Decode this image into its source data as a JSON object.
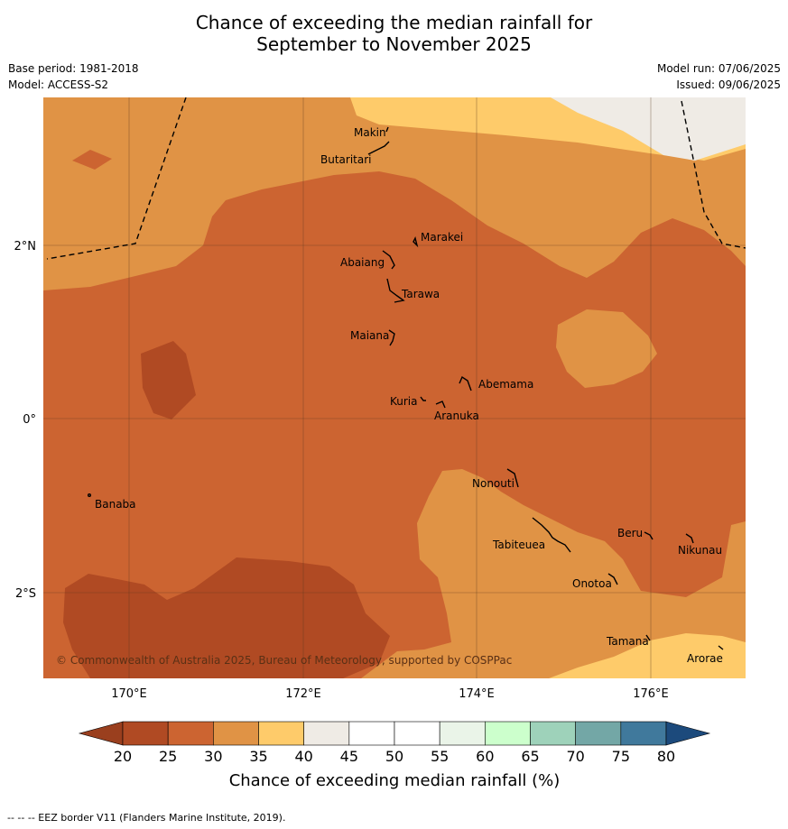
{
  "title": {
    "line1": "Chance of exceeding the median rainfall for",
    "line2": "September to November 2025"
  },
  "meta": {
    "base_period": "Base period: 1981-2018",
    "model": "Model: ACCESS-S2",
    "model_run": "Model run: 07/06/2025",
    "issued": "Issued: 09/06/2025"
  },
  "map": {
    "lat_ticks": [
      "2°N",
      "0°",
      "2°S"
    ],
    "lon_ticks": [
      "170°E",
      "172°E",
      "174°E",
      "176°E"
    ],
    "copyright": "© Commonwealth of Australia 2025, Bureau of Meteorology, supported by COSPPac",
    "places": [
      "Makin",
      "Butaritari",
      "Marakei",
      "Abaiang",
      "Tarawa",
      "Maiana",
      "Abemama",
      "Kuria",
      "Aranuka",
      "Nonouti",
      "Banaba",
      "Tabiteuea",
      "Beru",
      "Nikunau",
      "Onotoa",
      "Tamana",
      "Arorae"
    ]
  },
  "colorbar": {
    "ticks": [
      "20",
      "25",
      "30",
      "35",
      "40",
      "45",
      "50",
      "55",
      "60",
      "65",
      "70",
      "75",
      "80"
    ],
    "colors": [
      "#b04a23",
      "#cc6431",
      "#e09345",
      "#fecb6a",
      "#efebe5",
      "#ffffff",
      "#ffffff",
      "#eaf4e8",
      "#ccffcc",
      "#9ed2ba",
      "#73a7a6",
      "#40799c",
      "#1f4e82"
    ],
    "under_color": "#9a3f1e",
    "over_color": "#1c4a7c",
    "label": "Chance of exceeding median rainfall (%)"
  },
  "footnote": "-- -- -- EEZ border V11 (Flanders Marine Institute, 2019)."
}
